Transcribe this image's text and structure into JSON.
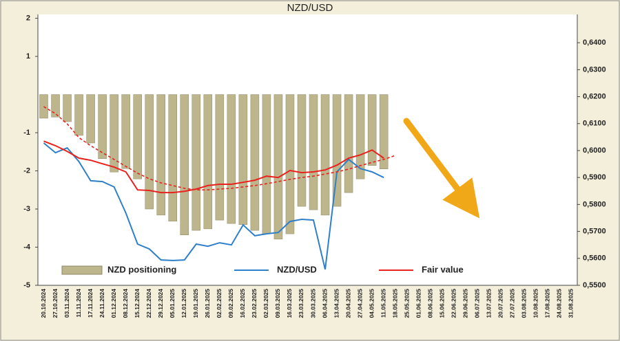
{
  "chart_data": {
    "type": "combo",
    "title": "NZD/USD",
    "categories": [
      "20.10.2024",
      "27.10.2024",
      "03.11.2024",
      "11.11.2024",
      "17.11.2024",
      "24.11.2024",
      "01.12.2024",
      "08.12.2024",
      "15.12.2024",
      "22.12.2024",
      "29.12.2024",
      "05.01.2025",
      "12.01.2025",
      "19.01.2025",
      "26.01.2025",
      "02.02.2025",
      "09.02.2025",
      "16.02.2025",
      "23.02.2025",
      "02.03.2025",
      "09.03.2025",
      "16.03.2025",
      "23.03.2025",
      "30.03.2025",
      "06.04.2025",
      "13.04.2025",
      "20.04.2025",
      "27.04.2025",
      "04.05.2025",
      "11.05.2025",
      "18.05.2025",
      "25.05.2025",
      "01.06.2025",
      "08.06.2025",
      "15.06.2025",
      "22.06.2025",
      "29.06.2025",
      "06.07.2025",
      "13.07.2025",
      "20.07.2025",
      "27.07.2025",
      "03.08.2025",
      "10.08.2025",
      "17.08.2025",
      "24.08.2025",
      "31.08.2025"
    ],
    "series": [
      {
        "name": "NZD positioning",
        "type": "bar",
        "color": "#bdb58c",
        "values": [
          -0.62,
          -0.59,
          -0.71,
          -1.07,
          -1.27,
          -1.68,
          -2.03,
          -1.94,
          -2.21,
          -3.0,
          -3.16,
          -3.32,
          -3.68,
          -3.56,
          -3.52,
          -3.29,
          -3.38,
          -3.41,
          -3.56,
          -3.65,
          -3.79,
          -3.65,
          -2.93,
          -3.02,
          -3.16,
          -2.93,
          -2.57,
          -2.21,
          -1.86,
          -1.95,
          null,
          null,
          null,
          null,
          null,
          null,
          null,
          null,
          null,
          null,
          null,
          null,
          null,
          null,
          null,
          null
        ]
      },
      {
        "name": "NZD/USD",
        "type": "line",
        "axis": "y2",
        "color": "#2e7fc9",
        "values": [
          0.6028,
          0.5992,
          0.601,
          0.5959,
          0.5888,
          0.5885,
          0.5865,
          0.5768,
          0.5653,
          0.5635,
          0.5594,
          0.5592,
          0.5594,
          0.5653,
          0.5645,
          0.5658,
          0.565,
          0.5724,
          0.5684,
          0.5691,
          0.5696,
          0.5737,
          0.5745,
          0.5742,
          0.5559,
          0.5921,
          0.5967,
          0.5933,
          0.5921,
          0.59,
          null,
          null,
          null,
          null,
          null,
          null,
          null,
          null,
          null,
          null,
          null,
          null,
          null,
          null,
          null,
          null
        ]
      },
      {
        "name": "Fair value",
        "type": "line",
        "axis": "y2",
        "color": "#e8211c",
        "values": [
          0.6035,
          0.6018,
          0.5997,
          0.5972,
          0.5964,
          0.5951,
          0.5939,
          0.5921,
          0.5854,
          0.5852,
          0.5844,
          0.5844,
          0.5849,
          0.5857,
          0.587,
          0.5875,
          0.5875,
          0.5882,
          0.589,
          0.5905,
          0.59,
          0.5926,
          0.5918,
          0.5921,
          0.5928,
          0.5946,
          0.5972,
          0.5984,
          0.6002,
          0.5972,
          null,
          null,
          null,
          null,
          null,
          null,
          null,
          null,
          null,
          null,
          null,
          null,
          null,
          null,
          null,
          null
        ]
      },
      {
        "type": "line",
        "axis": "y2",
        "dashed": true,
        "color": "#e8211c",
        "values": [
          0.6163,
          0.6137,
          0.6099,
          0.6048,
          0.6018,
          0.5992,
          0.5967,
          0.5941,
          0.5916,
          0.5895,
          0.588,
          0.587,
          0.586,
          0.5854,
          0.5854,
          0.5857,
          0.586,
          0.5865,
          0.587,
          0.5877,
          0.5885,
          0.5893,
          0.59,
          0.5905,
          0.5913,
          0.5921,
          0.5931,
          0.5944,
          0.5956,
          0.5967,
          0.5982,
          null,
          null,
          null,
          null,
          null,
          null,
          null,
          null,
          null,
          null,
          null,
          null,
          null,
          null,
          null
        ]
      }
    ],
    "ylim": [
      -5,
      2.1
    ],
    "yticks": [
      2,
      1,
      -1,
      -2,
      -3,
      -4,
      -5
    ],
    "y2lim": [
      0.55,
      0.6505
    ],
    "y2ticks": [
      {
        "value": 0.55,
        "label": "0,5500"
      },
      {
        "value": 0.56,
        "label": "0,5600"
      },
      {
        "value": 0.57,
        "label": "0,5700"
      },
      {
        "value": 0.58,
        "label": "0,5800"
      },
      {
        "value": 0.59,
        "label": "0,5900"
      },
      {
        "value": 0.6,
        "label": "0,6000"
      },
      {
        "value": 0.61,
        "label": "0,6100"
      },
      {
        "value": 0.62,
        "label": "0,6200"
      },
      {
        "value": 0.63,
        "label": "0,6300"
      },
      {
        "value": 0.64,
        "label": "0,6400"
      }
    ],
    "grid": false
  }
}
